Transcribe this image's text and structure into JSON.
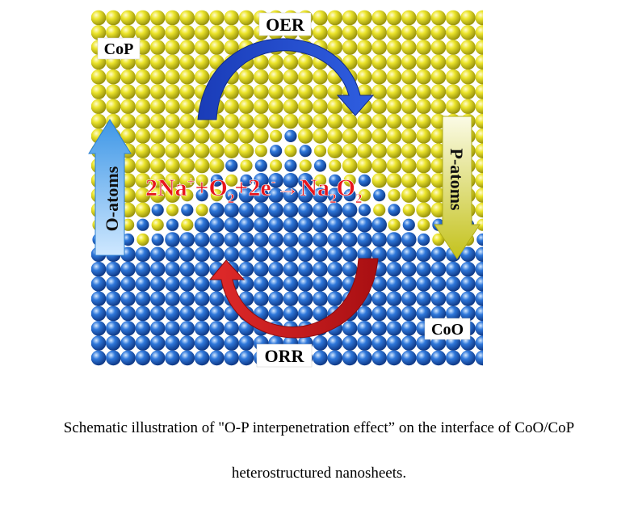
{
  "labels": {
    "cop": "CoP",
    "coo": "CoO",
    "oer": "OER",
    "orr": "ORR",
    "o_atoms": "O-atoms",
    "p_atoms": "P-atoms",
    "reaction": {
      "lead": "2Na",
      "sup_plus": "+",
      "o2_o": "+O",
      "o2_sub": "2",
      "e_part": "+2e",
      "sup_minus": "-",
      "arrow": "→Na",
      "na_sub": "2",
      "product_o": "O",
      "product_sub": "2"
    }
  },
  "caption": {
    "line1": "Schematic illustration of \"O-P interpenetration effect” on the interface of CoO/CoP",
    "line2": "heterostructured nanosheets."
  },
  "colors": {
    "cop_atom": "#e2dc1c",
    "coo_atom": "#1f63c9",
    "oer_arrow": "#1d3ec0",
    "orr_arrow": "#d8181c",
    "o_atoms_arrow": "#4aa3e8",
    "p_atoms_arrow": "#cfcc2a",
    "reaction_text": "#e8141c"
  }
}
